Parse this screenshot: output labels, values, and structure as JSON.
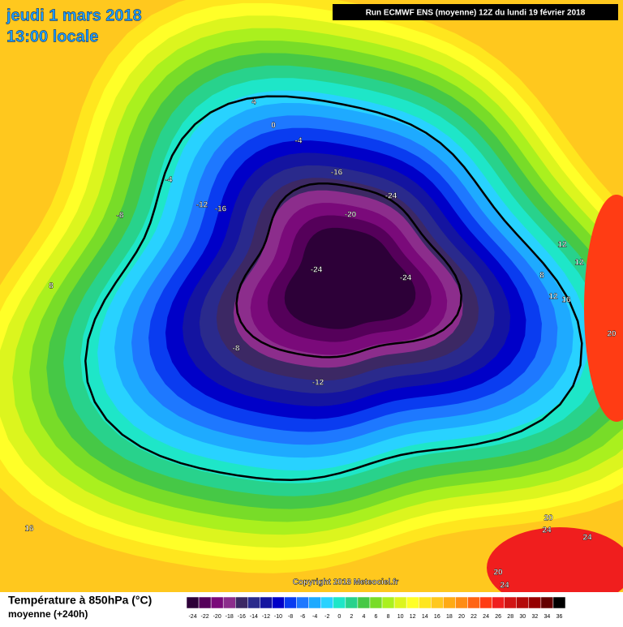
{
  "header": {
    "date": "jeudi 1 mars 2018",
    "time": "13:00 locale",
    "run": "Run ECMWF ENS (moyenne) 12Z du lundi 19 février 2018"
  },
  "map": {
    "contour_labels": [
      4,
      0,
      -4,
      -4,
      -8,
      -12,
      -16,
      -16,
      -20,
      -24,
      -24,
      -24,
      -8,
      -12,
      8,
      8,
      12,
      12,
      12,
      16,
      20,
      16,
      20,
      24,
      24,
      20,
      24
    ]
  },
  "copyright": "Copyright 2018 Meteociel.fr",
  "footer": {
    "title": "Température à 850hPa (°C)",
    "subtitle": "moyenne  (+240h)"
  },
  "colorbar": {
    "ticks": [
      -24,
      -22,
      -20,
      -18,
      -16,
      -14,
      -12,
      -10,
      -8,
      -6,
      -4,
      -2,
      0,
      2,
      4,
      6,
      8,
      10,
      12,
      14,
      16,
      18,
      20,
      22,
      24,
      26,
      28,
      30,
      32,
      34,
      36
    ],
    "colors": [
      "#2d0038",
      "#55005a",
      "#7a0a7a",
      "#8c2d8c",
      "#3c2864",
      "#2a2a8c",
      "#1414a0",
      "#0000c8",
      "#0a3cf0",
      "#1e78ff",
      "#1eaaff",
      "#28d2ff",
      "#1ee6c8",
      "#28d28c",
      "#46c846",
      "#78dc28",
      "#aaf01e",
      "#dcf51e",
      "#ffff28",
      "#ffe61e",
      "#ffc81e",
      "#ffaa14",
      "#ff8c14",
      "#ff6414",
      "#ff3c14",
      "#f01e1e",
      "#d21414",
      "#b40a0a",
      "#960000",
      "#640000",
      "#000000"
    ]
  }
}
